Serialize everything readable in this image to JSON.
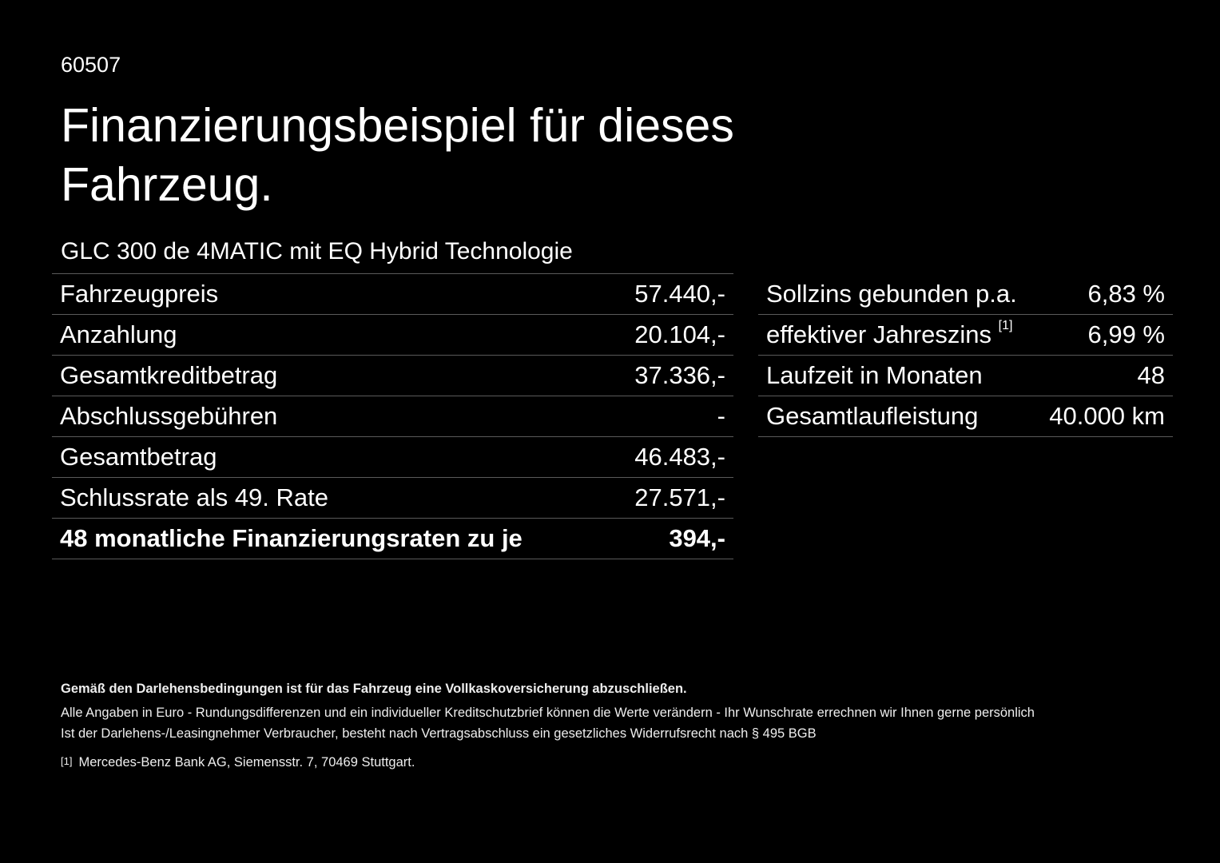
{
  "code": "60507",
  "title": "Finanzierungsbeispiel für dieses Fahrzeug.",
  "model": "GLC 300 de 4MATIC mit EQ Hybrid Technologie",
  "left_rows": [
    {
      "label": "Fahrzeugpreis",
      "value": "57.440,-"
    },
    {
      "label": "Anzahlung",
      "value": "20.104,-"
    },
    {
      "label": "Gesamtkreditbetrag",
      "value": "37.336,-"
    },
    {
      "label": "Abschlussgebühren",
      "value": "-"
    },
    {
      "label": "Gesamtbetrag",
      "value": "46.483,-"
    },
    {
      "label": "Schlussrate als 49. Rate",
      "value": "27.571,-"
    },
    {
      "label": "48 monatliche Finanzierungsraten zu je",
      "value": "394,-"
    }
  ],
  "right_rows": [
    {
      "label": "Sollzins gebunden p.a.",
      "value": "6,83 %"
    },
    {
      "label": "effektiver Jahreszins",
      "sup": "[1]",
      "value": "6,99 %"
    },
    {
      "label": "Laufzeit in Monaten",
      "value": "48"
    },
    {
      "label": "Gesamtlaufleistung",
      "value": "40.000 km"
    }
  ],
  "footer": {
    "bold": "Gemäß den Darlehensbedingungen ist für das Fahrzeug eine Vollkaskoversicherung abzuschließen.",
    "line1": "Alle Angaben in Euro - Rundungsdifferenzen und ein individueller Kreditschutzbrief können die Werte verändern - Ihr Wunschrate errechnen wir Ihnen gerne persönlich",
    "line2": "Ist der Darlehens-/Leasingnehmer Verbraucher, besteht nach Vertragsabschluss ein gesetzliches Widerrufsrecht nach § 495 BGB",
    "ref": "[1]",
    "note": "Mercedes-Benz Bank AG, Siemensstr. 7, 70469 Stuttgart."
  }
}
